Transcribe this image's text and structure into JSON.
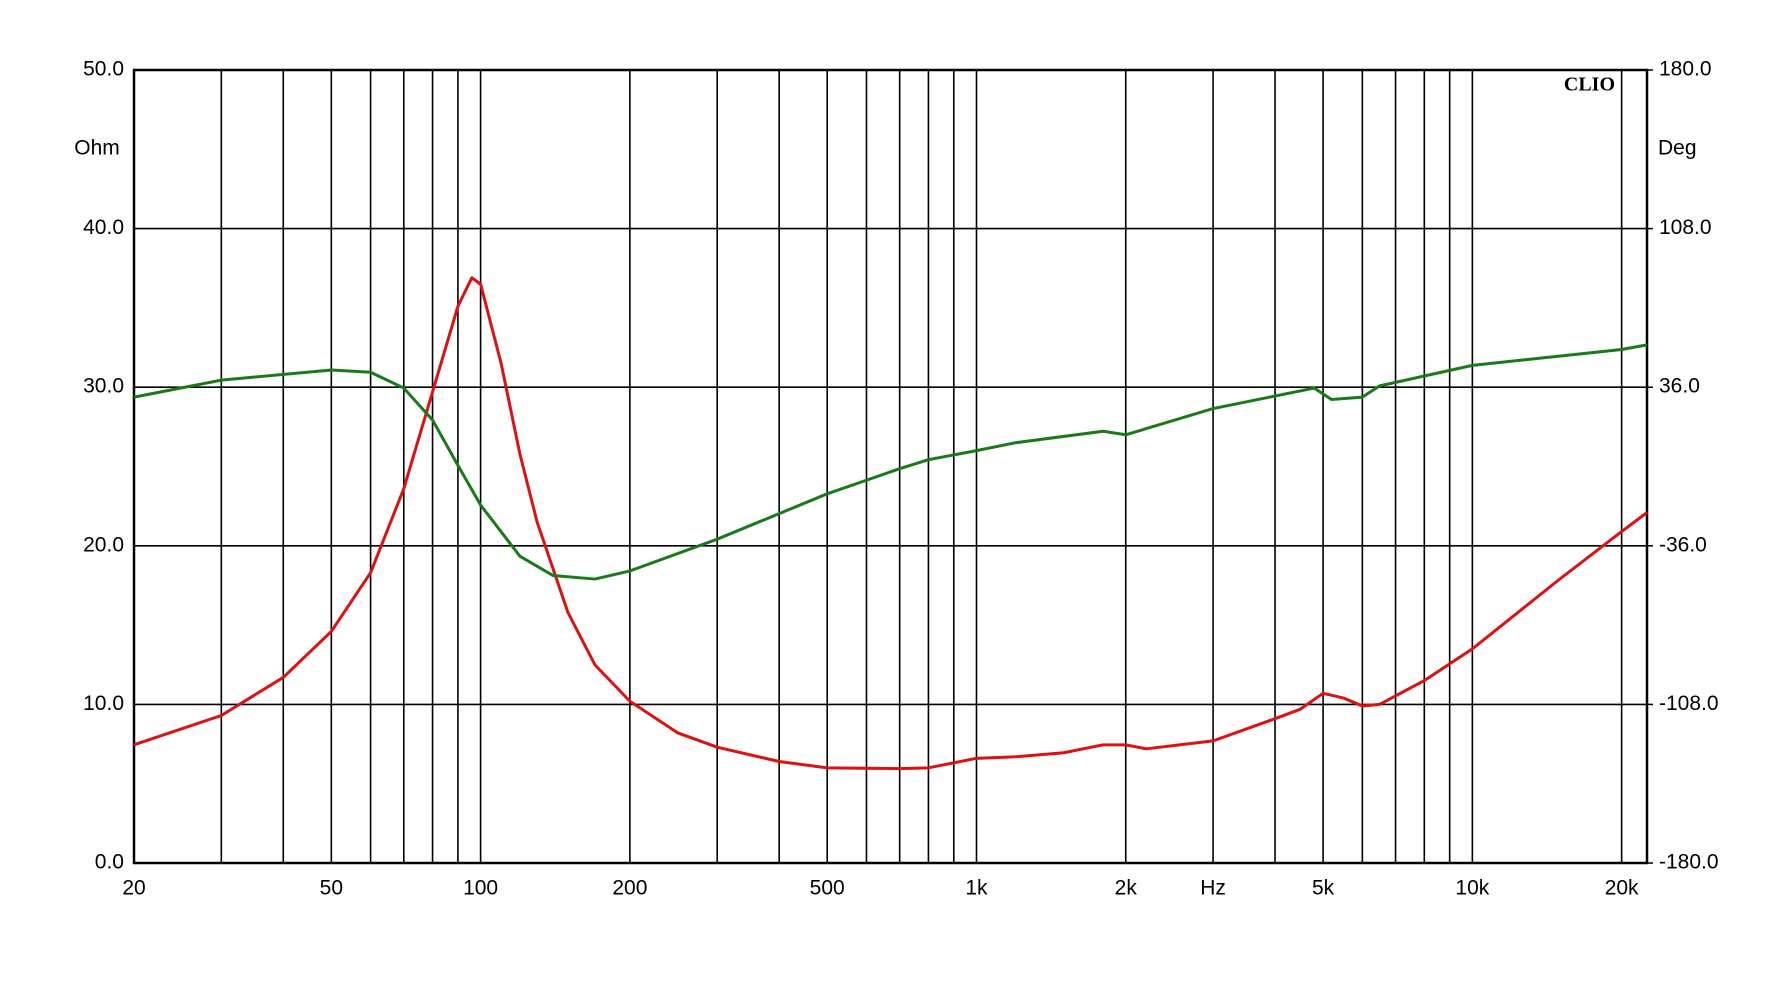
{
  "chart_data": {
    "type": "line",
    "xscale": "log",
    "xlim": [
      20,
      22500
    ],
    "xticks": [
      20,
      50,
      100,
      200,
      500,
      {
        "value": 1000,
        "label": "1k"
      },
      {
        "value": 2000,
        "label": "2k"
      },
      {
        "value": 3000,
        "label": "Hz"
      },
      {
        "value": 5000,
        "label": "5k"
      },
      {
        "value": 10000,
        "label": "10k"
      },
      {
        "value": 20000,
        "label": "20k"
      }
    ],
    "xminor": [
      30,
      40,
      60,
      70,
      80,
      90,
      300,
      400,
      600,
      700,
      800,
      900,
      4000,
      6000,
      7000,
      8000,
      9000
    ],
    "ylabel": "Ohm",
    "ylim": [
      0,
      50
    ],
    "yticks": [
      {
        "value": 0,
        "label": "0.0"
      },
      {
        "value": 10,
        "label": "10.0"
      },
      {
        "value": 20,
        "label": "20.0"
      },
      {
        "value": 30,
        "label": "30.0"
      },
      {
        "value": 40,
        "label": "40.0"
      },
      {
        "value": 50,
        "label": "50.0"
      }
    ],
    "y2label": "Deg",
    "y2lim": [
      -180,
      180
    ],
    "y2ticks": [
      {
        "value": -180,
        "label": "-180.0"
      },
      {
        "value": -108,
        "label": "-108.0"
      },
      {
        "value": -36,
        "label": "-36.0"
      },
      {
        "value": 36,
        "label": "36.0"
      },
      {
        "value": 108,
        "label": "108.0"
      },
      {
        "value": 180,
        "label": "180.0"
      }
    ],
    "grid": true,
    "annotation": "CLIO",
    "series": [
      {
        "color": "#dd1111",
        "x": [
          20,
          30,
          40,
          50,
          60,
          70,
          80,
          90,
          96,
          100,
          110,
          120,
          130,
          150,
          170,
          200,
          250,
          300,
          400,
          500,
          700,
          800,
          1000,
          1200,
          1500,
          1800,
          2000,
          2200,
          3000,
          4000,
          4500,
          5000,
          5500,
          6000,
          6500,
          8000,
          10000,
          15000,
          20000,
          22500
        ],
        "values": [
          7.45,
          9.3,
          11.7,
          14.6,
          18.3,
          23.6,
          29.7,
          35.1,
          36.9,
          36.5,
          31.5,
          25.8,
          21.5,
          15.8,
          12.5,
          10.2,
          8.2,
          7.3,
          6.4,
          6.0,
          5.95,
          6.0,
          6.6,
          6.7,
          6.95,
          7.45,
          7.45,
          7.2,
          7.7,
          9.1,
          9.7,
          10.7,
          10.4,
          9.9,
          10.0,
          11.5,
          13.5,
          17.9,
          20.9,
          22.1
        ]
      },
      {
        "color": "#1a7a1a",
        "axis": "y2",
        "x": [
          20,
          30,
          50,
          60,
          70,
          80,
          90,
          100,
          120,
          140,
          170,
          200,
          300,
          500,
          700,
          800,
          1000,
          1200,
          1800,
          2000,
          3000,
          4800,
          5200,
          6000,
          6500,
          10000,
          20000,
          22500
        ],
        "values": [
          31.5,
          39.2,
          43.8,
          42.8,
          35.6,
          21.1,
          0.5,
          -17.5,
          -40.7,
          -49.5,
          -51.1,
          -47.4,
          -33.0,
          -12.4,
          -1.0,
          3.1,
          7.2,
          10.8,
          16.0,
          14.4,
          26.3,
          35.6,
          30.4,
          31.5,
          36.6,
          45.9,
          53.1,
          55.2
        ]
      }
    ]
  }
}
